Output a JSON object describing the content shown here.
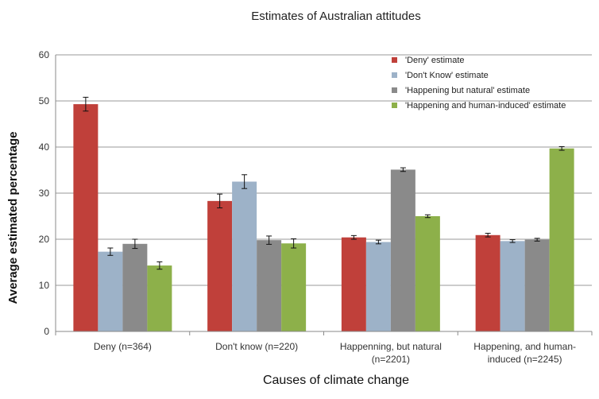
{
  "chart_data": {
    "type": "bar",
    "title": "Estimates of Australian attitudes",
    "xlabel": "Causes of climate change",
    "ylabel": "Average estimated percentage",
    "ylim": [
      0,
      60
    ],
    "yticks": [
      0,
      10,
      20,
      30,
      40,
      50,
      60
    ],
    "grid": true,
    "legend_position": "top-right",
    "categories": [
      [
        "Deny (n=364)"
      ],
      [
        "Don't know (n=220)"
      ],
      [
        "Happenning, but natural",
        "(n=2201)"
      ],
      [
        "Happening, and human-",
        "induced (n=2245)"
      ]
    ],
    "series": [
      {
        "name": "'Deny' estimate",
        "color": "#c0403a",
        "values": [
          49.3,
          28.3,
          20.4,
          20.9
        ],
        "errors": [
          1.5,
          1.5,
          0.4,
          0.4
        ]
      },
      {
        "name": "'Don't Know' estimate",
        "color": "#9db2c8",
        "values": [
          17.3,
          32.5,
          19.4,
          19.6
        ],
        "errors": [
          0.8,
          1.5,
          0.4,
          0.3
        ]
      },
      {
        "name": "'Happening but natural' estimate",
        "color": "#8a8a8a",
        "values": [
          19.0,
          19.8,
          35.1,
          19.9
        ],
        "errors": [
          1.0,
          0.9,
          0.4,
          0.3
        ]
      },
      {
        "name": "'Happening and human-induced' estimate",
        "color": "#8db04a",
        "values": [
          14.3,
          19.1,
          25.0,
          39.7
        ],
        "errors": [
          0.8,
          1.0,
          0.3,
          0.4
        ]
      }
    ]
  }
}
